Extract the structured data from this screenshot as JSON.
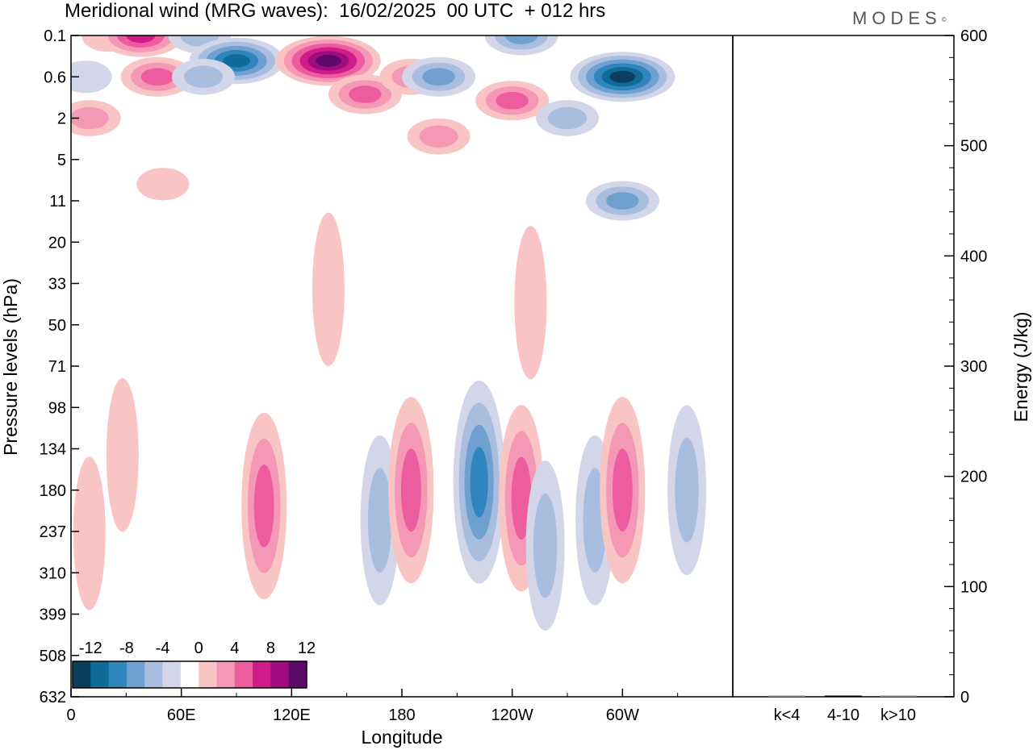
{
  "title": "Meridional wind (MRG waves):  16/02/2025  00 UTC  + 012 hrs",
  "logo": "MODES",
  "colors": {
    "neg": [
      "#0b3f5e",
      "#0f6c9a",
      "#2e86bd",
      "#6fa0cf",
      "#a9bedf",
      "#d3d5e9"
    ],
    "pos": [
      "#f9c4c4",
      "#f598b6",
      "#ec5c9e",
      "#cf1c8a",
      "#a00c80",
      "#5e0a6b"
    ],
    "energy_bar": "#000000"
  },
  "chart_data": [
    {
      "type": "heatmap",
      "title": "Meridional wind (MRG waves):  16/02/2025  00 UTC  + 012 hrs",
      "xlabel": "Longitude",
      "ylabel": "Pressure levels (hPa)",
      "x_ticks": [
        "0",
        "60E",
        "120E",
        "180",
        "120W",
        "60W"
      ],
      "y_ticks": [
        "0.1",
        "0.6",
        "2",
        "5",
        "11",
        "20",
        "33",
        "50",
        "71",
        "98",
        "134",
        "180",
        "237",
        "310",
        "399",
        "508",
        "632"
      ],
      "colorbar": {
        "labels": [
          "-12",
          "-8",
          "-4",
          "0",
          "4",
          "8",
          "12"
        ],
        "levels": [
          -14,
          -12,
          -10,
          -8,
          -6,
          -4,
          -2,
          2,
          4,
          6,
          8,
          10,
          12,
          14
        ]
      },
      "field": [
        {
          "lon": 8,
          "p": 0.6,
          "v": -3
        },
        {
          "lon": 20,
          "p": 0.1,
          "v": 3
        },
        {
          "lon": 38,
          "p": 0.1,
          "v": 9
        },
        {
          "lon": 47,
          "p": 0.6,
          "v": 7
        },
        {
          "lon": 70,
          "p": 0.1,
          "v": -5
        },
        {
          "lon": 90,
          "p": 0.3,
          "v": -11
        },
        {
          "lon": 72,
          "p": 0.6,
          "v": -5
        },
        {
          "lon": 140,
          "p": 0.3,
          "v": 13
        },
        {
          "lon": 160,
          "p": 1.0,
          "v": 6
        },
        {
          "lon": 185,
          "p": 0.6,
          "v": 5
        },
        {
          "lon": 200,
          "p": 0.6,
          "v": -6
        },
        {
          "lon": 245,
          "p": 0.1,
          "v": -7
        },
        {
          "lon": 300,
          "p": 0.6,
          "v": -13
        },
        {
          "lon": 240,
          "p": 1.2,
          "v": 6
        },
        {
          "lon": 10,
          "p": 2,
          "v": 4
        },
        {
          "lon": 270,
          "p": 2,
          "v": -4
        },
        {
          "lon": 200,
          "p": 3,
          "v": 4
        },
        {
          "lon": 300,
          "p": 11,
          "v": -6
        },
        {
          "lon": 50,
          "p": 8,
          "v": 2
        },
        {
          "lon": 250,
          "p": 40,
          "v": 3
        },
        {
          "lon": 140,
          "p": 35,
          "v": 3
        },
        {
          "lon": 105,
          "p": 200,
          "v": 7
        },
        {
          "lon": 168,
          "p": 220,
          "v": -5
        },
        {
          "lon": 185,
          "p": 180,
          "v": 6
        },
        {
          "lon": 222,
          "p": 170,
          "v": -9
        },
        {
          "lon": 245,
          "p": 190,
          "v": 7
        },
        {
          "lon": 258,
          "p": 260,
          "v": -5
        },
        {
          "lon": 285,
          "p": 220,
          "v": -4
        },
        {
          "lon": 300,
          "p": 180,
          "v": 7
        },
        {
          "lon": 335,
          "p": 180,
          "v": -4
        },
        {
          "lon": 10,
          "p": 240,
          "v": 2
        },
        {
          "lon": 28,
          "p": 140,
          "v": 3
        }
      ]
    },
    {
      "type": "bar",
      "ylabel": "Energy (J/kg)",
      "categories": [
        "k<4",
        "4-10",
        "k>10"
      ],
      "values": [
        0,
        1,
        0
      ],
      "ylim": [
        0,
        600
      ],
      "y_ticks": [
        "0",
        "100",
        "200",
        "300",
        "400",
        "500",
        "600"
      ]
    }
  ]
}
